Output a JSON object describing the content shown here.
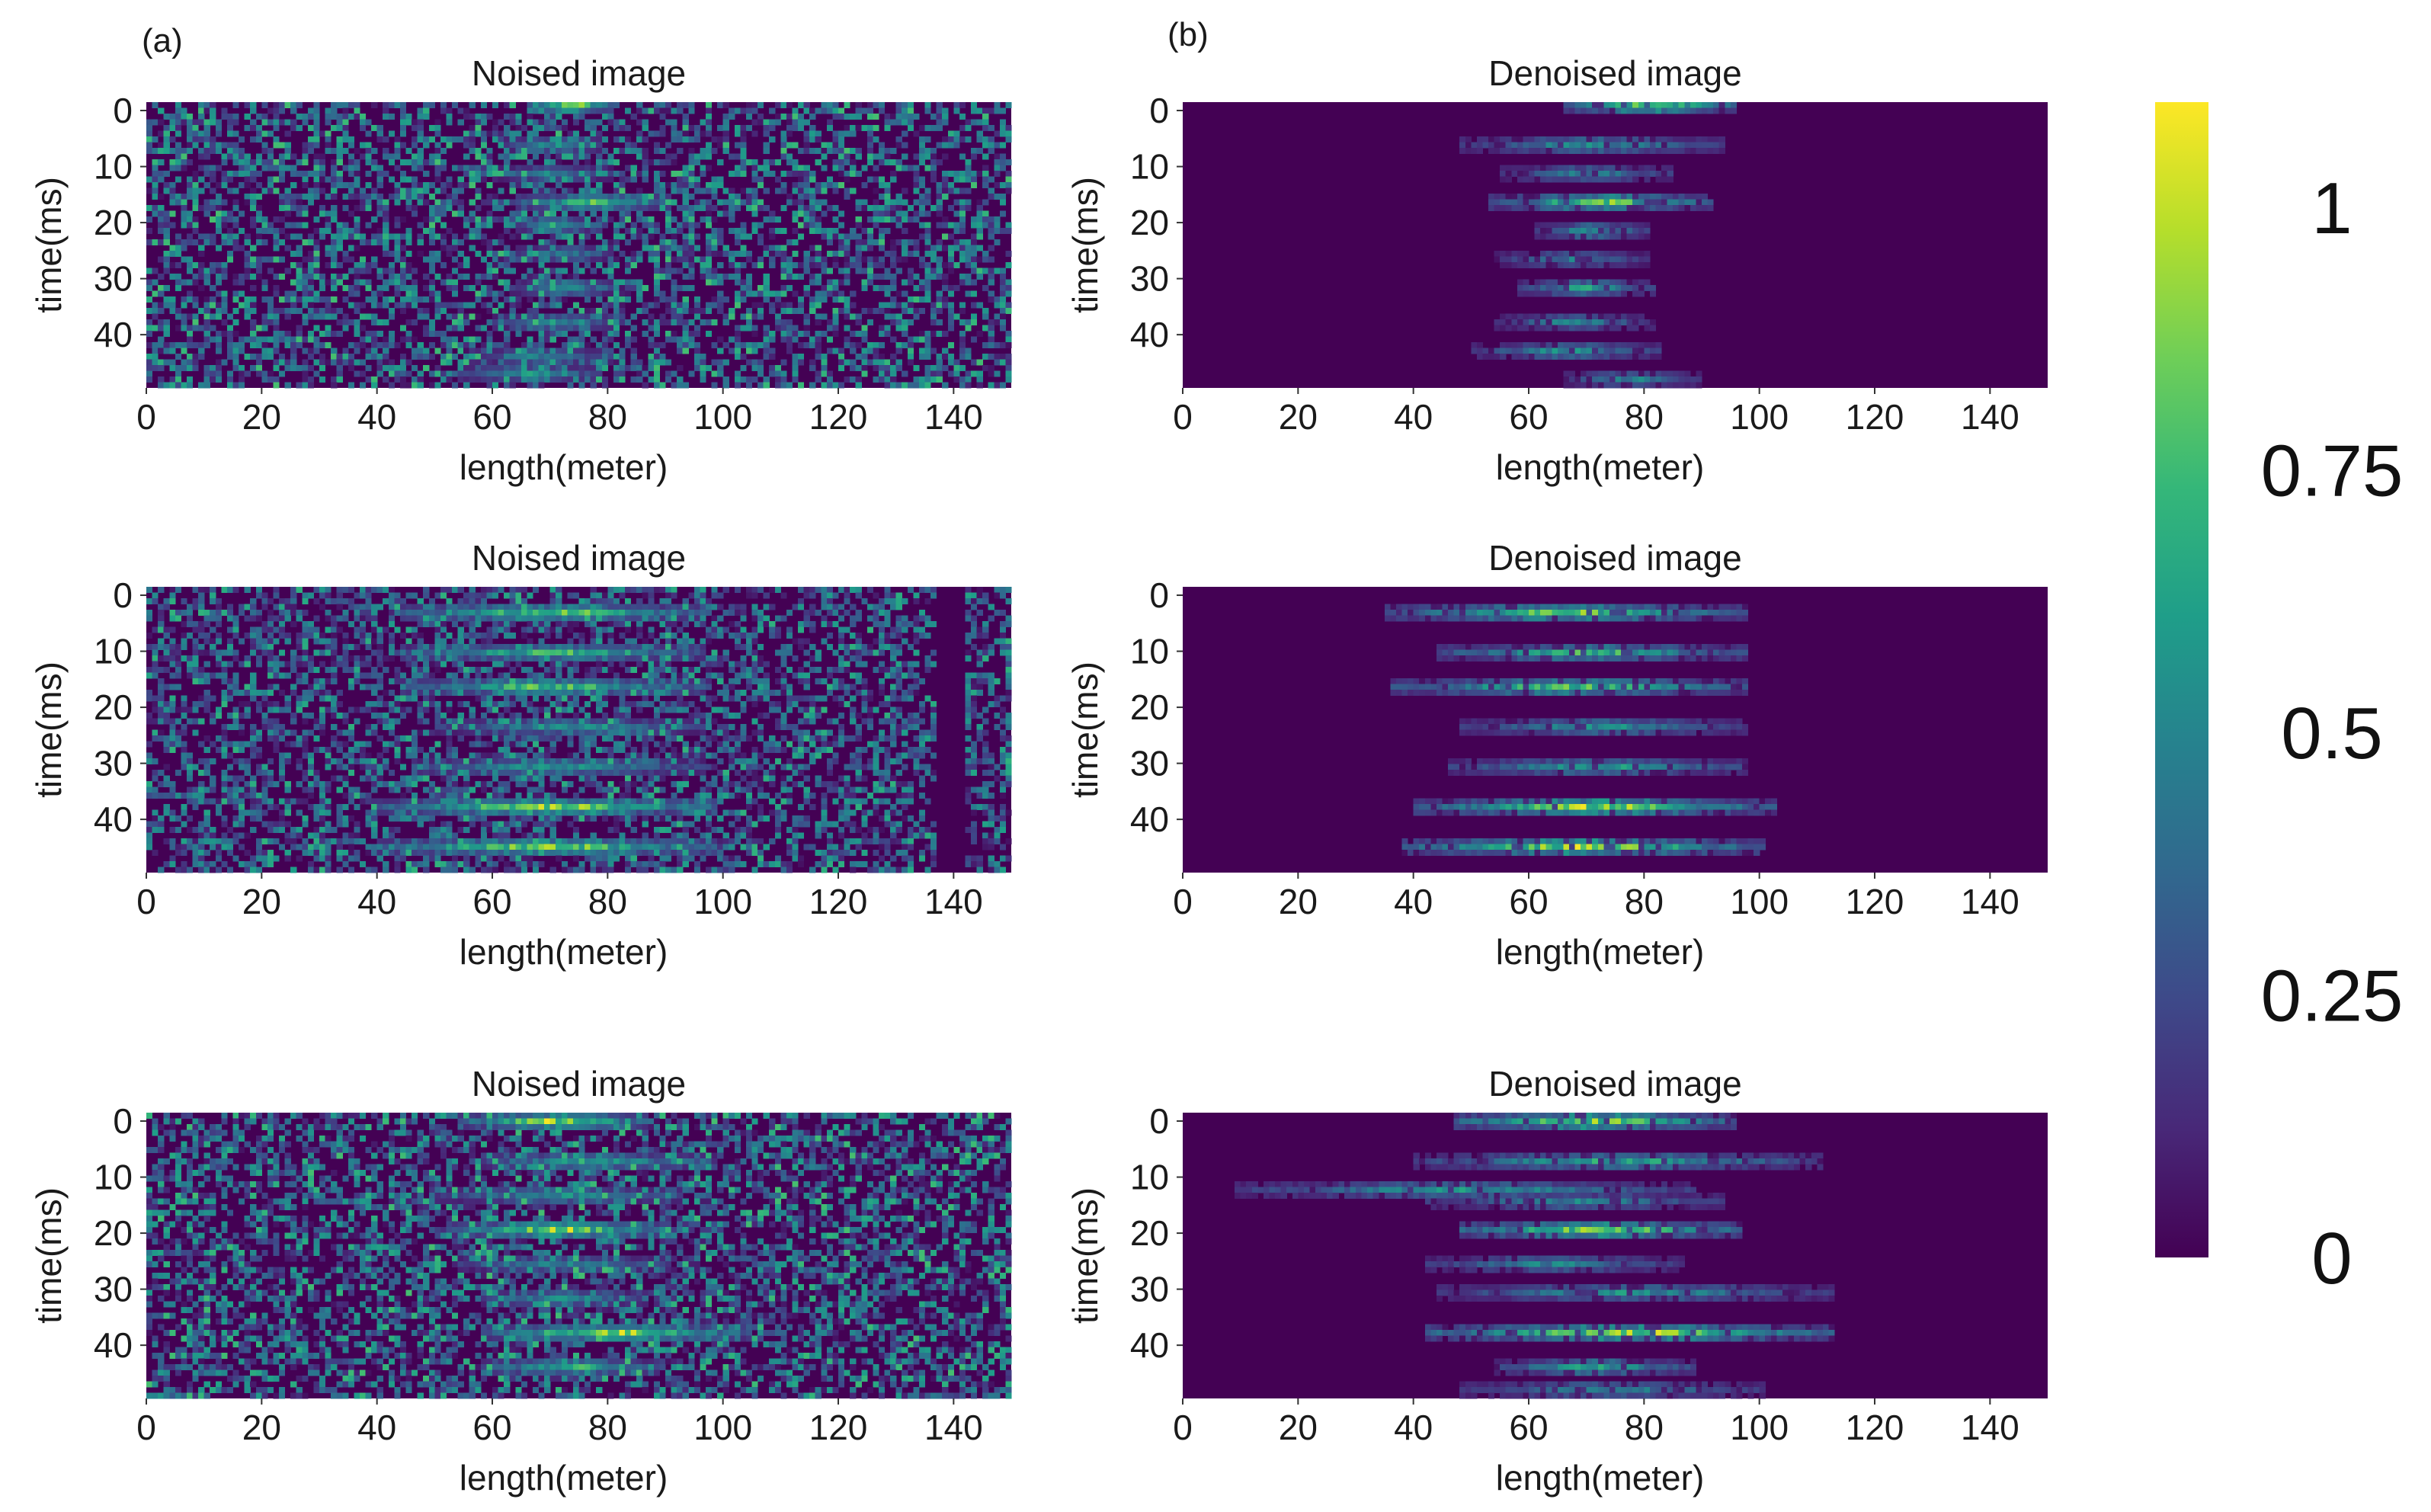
{
  "panel_labels": [
    "(a)",
    "(b)"
  ],
  "colormap": {
    "name": "viridis",
    "stops": [
      "#440154",
      "#482878",
      "#3e4989",
      "#31688e",
      "#26828e",
      "#1f9e89",
      "#35b779",
      "#6ece58",
      "#b5de2b",
      "#fde725"
    ]
  },
  "colorbar": {
    "ticks": [
      {
        "value": 1,
        "label": "1"
      },
      {
        "value": 0.75,
        "label": "0.75"
      },
      {
        "value": 0.5,
        "label": "0.5"
      },
      {
        "value": 0.25,
        "label": "0.25"
      },
      {
        "value": 0,
        "label": "0"
      }
    ],
    "range": [
      0,
      1.1
    ]
  },
  "chart_data": [
    {
      "type": "heatmap",
      "panel": "a",
      "row": 1,
      "title": "Noised image",
      "xlabel": "length(meter)",
      "ylabel": "time(ms)",
      "x_ticks": [
        0,
        20,
        40,
        60,
        80,
        100,
        120,
        140
      ],
      "y_ticks": [
        0,
        10,
        20,
        30,
        40
      ],
      "xlim": [
        0,
        150
      ],
      "ylim": [
        50,
        -1
      ],
      "noise_level": 0.55,
      "events": [
        {
          "t": 0,
          "x0": 66,
          "x1": 80,
          "peak": 1.0
        },
        {
          "t": 7,
          "x0": 62,
          "x1": 78,
          "peak": 0.6
        },
        {
          "t": 12,
          "x0": 60,
          "x1": 80,
          "peak": 0.55
        },
        {
          "t": 17,
          "x0": 64,
          "x1": 90,
          "peak": 0.85
        },
        {
          "t": 21,
          "x0": 64,
          "x1": 76,
          "peak": 0.7
        },
        {
          "t": 26,
          "x0": 64,
          "x1": 80,
          "peak": 0.55
        },
        {
          "t": 32,
          "x0": 64,
          "x1": 80,
          "peak": 0.7
        },
        {
          "t": 38,
          "x0": 60,
          "x1": 80,
          "peak": 0.6
        },
        {
          "t": 44,
          "x0": 56,
          "x1": 80,
          "peak": 0.55
        },
        {
          "t": 47,
          "x0": 54,
          "x1": 78,
          "peak": 0.6
        }
      ]
    },
    {
      "type": "heatmap",
      "panel": "b",
      "row": 1,
      "title": "Denoised image",
      "xlabel": "length(meter)",
      "ylabel": "time(ms)",
      "x_ticks": [
        0,
        20,
        40,
        60,
        80,
        100,
        120,
        140
      ],
      "y_ticks": [
        0,
        10,
        20,
        30,
        40
      ],
      "xlim": [
        0,
        150
      ],
      "ylim": [
        50,
        -1
      ],
      "noise_level": 0,
      "events": [
        {
          "t": 0,
          "x0": 66,
          "x1": 95,
          "peak": 1.0
        },
        {
          "t": 7,
          "x0": 48,
          "x1": 93,
          "peak": 0.6
        },
        {
          "t": 12,
          "x0": 55,
          "x1": 84,
          "peak": 0.55
        },
        {
          "t": 17,
          "x0": 53,
          "x1": 91,
          "peak": 0.9
        },
        {
          "t": 22,
          "x0": 61,
          "x1": 80,
          "peak": 0.65
        },
        {
          "t": 27,
          "x0": 54,
          "x1": 80,
          "peak": 0.5
        },
        {
          "t": 32,
          "x0": 58,
          "x1": 81,
          "peak": 0.65
        },
        {
          "t": 38,
          "x0": 54,
          "x1": 81,
          "peak": 0.55
        },
        {
          "t": 43,
          "x0": 50,
          "x1": 82,
          "peak": 0.6
        },
        {
          "t": 48,
          "x0": 66,
          "x1": 89,
          "peak": 0.55
        }
      ]
    },
    {
      "type": "heatmap",
      "panel": "a",
      "row": 2,
      "title": "Noised image",
      "xlabel": "length(meter)",
      "ylabel": "time(ms)",
      "x_ticks": [
        0,
        20,
        40,
        60,
        80,
        100,
        120,
        140
      ],
      "y_ticks": [
        0,
        10,
        20,
        30,
        40
      ],
      "xlim": [
        0,
        150
      ],
      "ylim": [
        50,
        -1
      ],
      "noise_level": 0.5,
      "dark_band": [
        137,
        142
      ],
      "events": [
        {
          "t": 4,
          "x0": 44,
          "x1": 96,
          "peak": 0.9
        },
        {
          "t": 11,
          "x0": 44,
          "x1": 96,
          "peak": 0.8
        },
        {
          "t": 17,
          "x0": 44,
          "x1": 96,
          "peak": 0.85
        },
        {
          "t": 24,
          "x0": 50,
          "x1": 96,
          "peak": 0.6
        },
        {
          "t": 31,
          "x0": 46,
          "x1": 96,
          "peak": 0.65
        },
        {
          "t": 38,
          "x0": 40,
          "x1": 98,
          "peak": 1.0
        },
        {
          "t": 45,
          "x0": 40,
          "x1": 98,
          "peak": 1.0
        }
      ]
    },
    {
      "type": "heatmap",
      "panel": "b",
      "row": 2,
      "title": "Denoised image",
      "xlabel": "length(meter)",
      "ylabel": "time(ms)",
      "x_ticks": [
        0,
        20,
        40,
        60,
        80,
        100,
        120,
        140
      ],
      "y_ticks": [
        0,
        10,
        20,
        30,
        40
      ],
      "xlim": [
        0,
        150
      ],
      "ylim": [
        50,
        -1
      ],
      "noise_level": 0,
      "events": [
        {
          "t": 4,
          "x0": 35,
          "x1": 97,
          "peak": 0.9
        },
        {
          "t": 11,
          "x0": 44,
          "x1": 97,
          "peak": 0.8
        },
        {
          "t": 17,
          "x0": 36,
          "x1": 97,
          "peak": 0.85
        },
        {
          "t": 24,
          "x0": 48,
          "x1": 97,
          "peak": 0.6
        },
        {
          "t": 31,
          "x0": 46,
          "x1": 97,
          "peak": 0.65
        },
        {
          "t": 38,
          "x0": 40,
          "x1": 102,
          "peak": 1.0
        },
        {
          "t": 45,
          "x0": 38,
          "x1": 100,
          "peak": 1.0
        }
      ]
    },
    {
      "type": "heatmap",
      "panel": "a",
      "row": 3,
      "title": "Noised image",
      "xlabel": "length(meter)",
      "ylabel": "time(ms)",
      "x_ticks": [
        0,
        20,
        40,
        60,
        80,
        100,
        120,
        140
      ],
      "y_ticks": [
        0,
        10,
        20,
        30,
        40
      ],
      "xlim": [
        0,
        150
      ],
      "ylim": [
        50,
        -1
      ],
      "noise_level": 0.55,
      "events": [
        {
          "t": 1,
          "x0": 54,
          "x1": 86,
          "peak": 1.0
        },
        {
          "t": 8,
          "x0": 58,
          "x1": 96,
          "peak": 0.7
        },
        {
          "t": 14,
          "x0": 50,
          "x1": 92,
          "peak": 0.6
        },
        {
          "t": 20,
          "x0": 52,
          "x1": 90,
          "peak": 1.0
        },
        {
          "t": 26,
          "x0": 54,
          "x1": 90,
          "peak": 0.55
        },
        {
          "t": 32,
          "x0": 58,
          "x1": 86,
          "peak": 0.6
        },
        {
          "t": 38,
          "x0": 58,
          "x1": 104,
          "peak": 1.0
        },
        {
          "t": 44,
          "x0": 58,
          "x1": 88,
          "peak": 0.75
        }
      ]
    },
    {
      "type": "heatmap",
      "panel": "b",
      "row": 3,
      "title": "Denoised image",
      "xlabel": "length(meter)",
      "ylabel": "time(ms)",
      "x_ticks": [
        0,
        20,
        40,
        60,
        80,
        100,
        120,
        140
      ],
      "y_ticks": [
        0,
        10,
        20,
        30,
        40
      ],
      "xlim": [
        0,
        150
      ],
      "ylim": [
        50,
        -1
      ],
      "noise_level": 0,
      "events": [
        {
          "t": 1,
          "x0": 47,
          "x1": 95,
          "peak": 1.0
        },
        {
          "t": 8,
          "x0": 40,
          "x1": 110,
          "peak": 0.7
        },
        {
          "t": 13,
          "x0": 9,
          "x1": 88,
          "peak": 0.6
        },
        {
          "t": 15,
          "x0": 42,
          "x1": 93,
          "peak": 0.55
        },
        {
          "t": 20,
          "x0": 48,
          "x1": 96,
          "peak": 1.0
        },
        {
          "t": 26,
          "x0": 42,
          "x1": 86,
          "peak": 0.55
        },
        {
          "t": 31,
          "x0": 44,
          "x1": 112,
          "peak": 0.6
        },
        {
          "t": 38,
          "x0": 42,
          "x1": 112,
          "peak": 1.0
        },
        {
          "t": 44,
          "x0": 54,
          "x1": 88,
          "peak": 0.7
        },
        {
          "t": 48,
          "x0": 48,
          "x1": 100,
          "peak": 0.55
        }
      ]
    }
  ]
}
